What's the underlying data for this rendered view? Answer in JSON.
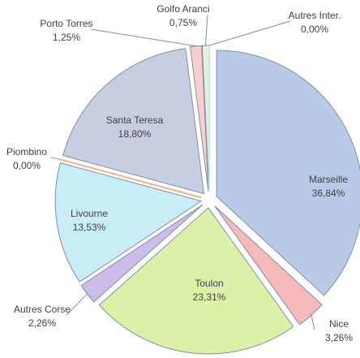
{
  "chart_data": {
    "type": "pie",
    "categories": [
      "Marseille",
      "Nice",
      "Toulon",
      "Autres Corse",
      "Livourne",
      "Piombino",
      "Santa Teresa",
      "Porto Torres",
      "Golfo Aranci",
      "Autres Inter."
    ],
    "values": [
      36.84,
      3.26,
      23.31,
      2.26,
      13.53,
      0.0,
      18.8,
      1.25,
      0.75,
      0.0
    ],
    "value_labels": [
      "36,84%",
      "3,26%",
      "23,31%",
      "2,26%",
      "13,53%",
      "0,00%",
      "18,80%",
      "1,25%",
      "0,75%",
      "0,00%"
    ],
    "colors": [
      "#b4c7e7",
      "#f4b6b6",
      "#d9f0a3",
      "#c9b8e8",
      "#c6ecf7",
      "#f4b183",
      "#c5cbe0",
      "#f8cbcb",
      "#e2efd9",
      "#c9e4f0"
    ]
  }
}
